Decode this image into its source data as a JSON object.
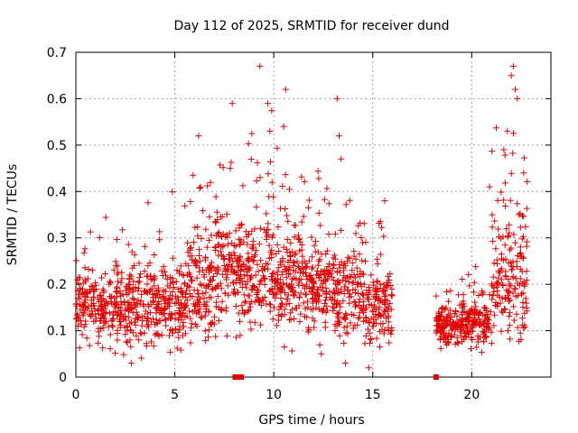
{
  "chart_data": {
    "type": "scatter",
    "title": "Day 112 of 2025, SRMTID for receiver dund",
    "xlabel": "GPS time / hours",
    "ylabel": "SRMTID / TECUs",
    "xlim": [
      0,
      24
    ],
    "ylim": [
      0,
      0.7
    ],
    "x_ticks": [
      0,
      5,
      10,
      15,
      20
    ],
    "y_ticks": [
      0,
      0.1,
      0.2,
      0.3,
      0.4,
      0.5,
      0.6,
      0.7
    ],
    "x_tick_labels": [
      "0",
      "5",
      "10",
      "15",
      "20"
    ],
    "y_tick_labels": [
      "0",
      "0.1",
      "0.2",
      "0.3",
      "0.4",
      "0.5",
      "0.6",
      "0.7"
    ],
    "grid": true,
    "marker": "plus",
    "series": [
      {
        "name": "SRMTID",
        "color": "#e00000",
        "data_segments": [
          {
            "x_range": [
              0.0,
              1.0
            ],
            "y_center": 0.16,
            "y_spread": 0.06,
            "density": 90
          },
          {
            "x_range": [
              1.0,
              2.5
            ],
            "y_center": 0.15,
            "y_spread": 0.07,
            "density": 130
          },
          {
            "x_range": [
              2.5,
              4.0
            ],
            "y_center": 0.16,
            "y_spread": 0.08,
            "density": 140
          },
          {
            "x_range": [
              4.0,
              5.5
            ],
            "y_center": 0.15,
            "y_spread": 0.07,
            "density": 140
          },
          {
            "x_range": [
              5.5,
              7.0
            ],
            "y_center": 0.2,
            "y_spread": 0.09,
            "density": 150
          },
          {
            "x_range": [
              7.0,
              8.4
            ],
            "y_center": 0.24,
            "y_spread": 0.1,
            "density": 140
          },
          {
            "x_range": [
              8.4,
              10.0
            ],
            "y_center": 0.23,
            "y_spread": 0.1,
            "density": 150
          },
          {
            "x_range": [
              10.0,
              11.5
            ],
            "y_center": 0.22,
            "y_spread": 0.09,
            "density": 150
          },
          {
            "x_range": [
              11.5,
              13.0
            ],
            "y_center": 0.19,
            "y_spread": 0.08,
            "density": 150
          },
          {
            "x_range": [
              13.0,
              14.5
            ],
            "y_center": 0.18,
            "y_spread": 0.08,
            "density": 140
          },
          {
            "x_range": [
              14.5,
              16.0
            ],
            "y_center": 0.15,
            "y_spread": 0.07,
            "density": 140
          },
          {
            "x_range": [
              18.2,
              19.5
            ],
            "y_center": 0.11,
            "y_spread": 0.03,
            "density": 130
          },
          {
            "x_range": [
              19.5,
              21.0
            ],
            "y_center": 0.12,
            "y_spread": 0.04,
            "density": 140
          },
          {
            "x_range": [
              21.0,
              22.8
            ],
            "y_center": 0.22,
            "y_spread": 0.12,
            "density": 170
          }
        ],
        "peaks": [
          {
            "x": 9.3,
            "y": 0.67
          },
          {
            "x": 10.6,
            "y": 0.62
          },
          {
            "x": 13.2,
            "y": 0.6
          },
          {
            "x": 9.7,
            "y": 0.59
          },
          {
            "x": 7.9,
            "y": 0.59
          },
          {
            "x": 22.1,
            "y": 0.67
          },
          {
            "x": 22.0,
            "y": 0.65
          },
          {
            "x": 22.2,
            "y": 0.62
          },
          {
            "x": 22.3,
            "y": 0.6
          },
          {
            "x": 21.8,
            "y": 0.53
          },
          {
            "x": 10.5,
            "y": 0.54
          },
          {
            "x": 9.8,
            "y": 0.53
          },
          {
            "x": 6.2,
            "y": 0.52
          },
          {
            "x": 13.3,
            "y": 0.52
          },
          {
            "x": 7.8,
            "y": 0.45
          },
          {
            "x": 13.4,
            "y": 0.47
          },
          {
            "x": 15.6,
            "y": 0.38
          },
          {
            "x": 20.9,
            "y": 0.41
          },
          {
            "x": 14.8,
            "y": 0.02
          },
          {
            "x": 8.3,
            "y": 0.09
          },
          {
            "x": 12.4,
            "y": 0.05
          },
          {
            "x": 2.8,
            "y": 0.03
          }
        ],
        "zero_points": [
          {
            "x": 8.05,
            "y": 0.0
          },
          {
            "x": 8.2,
            "y": 0.0
          },
          {
            "x": 8.35,
            "y": 0.0
          },
          {
            "x": 18.2,
            "y": 0.0
          }
        ]
      }
    ]
  }
}
